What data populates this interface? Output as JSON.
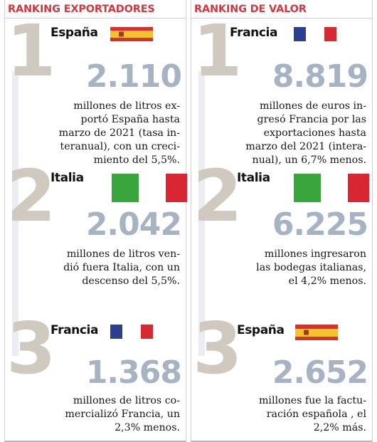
{
  "columns": [
    {
      "header": "RANKING EXPORTADORES",
      "entries": [
        {
          "rank": "1",
          "country": "España",
          "flag": "spain-flag",
          "value": "2.110",
          "description": "millones de litros ex-\nportó España hasta\nmarzo de 2021 (tasa in-\nteranual), con un creci-\nmiento del 5,5%."
        },
        {
          "rank": "2",
          "country": "Italia",
          "flag": "italy-flag",
          "value": "2.042",
          "description": "millones de litros ven-\ndió fuera Italia, con un\ndescenso del 5,5%."
        },
        {
          "rank": "3",
          "country": "Francia",
          "flag": "france-flag",
          "value": "1.368",
          "description": "millones de litros co-\nmercializó Francia, un\n2,3% menos."
        }
      ]
    },
    {
      "header": "RANKING DE VALOR",
      "entries": [
        {
          "rank": "1",
          "country": "Francia",
          "flag": "france-flag",
          "value": "8.819",
          "description": "millones de euros in-\ngresó Francia por las\nexportaciones hasta\nmarzo del 2021 (intera-\nnual), un 6,7% menos."
        },
        {
          "rank": "2",
          "country": "Italia",
          "flag": "italy-flag",
          "value": "6.225",
          "description": "millones ingresaron\nlas bodegas italianas,\nel 4,2% menos."
        },
        {
          "rank": "3",
          "country": "España",
          "flag": "spain-flag",
          "value": "2.652",
          "description": "millones fue la factu-\nración española , el\n2,2% más."
        }
      ]
    }
  ],
  "colors": {
    "header_red": "#d2383f",
    "rank_numeral": "#cfc9bf",
    "big_number": "#a6b3c3"
  }
}
